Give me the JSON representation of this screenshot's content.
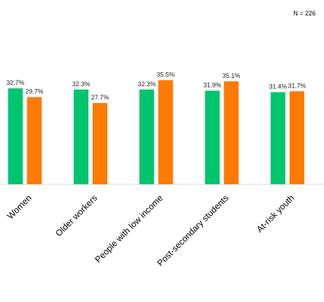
{
  "note": "N = 226",
  "chart_data": {
    "type": "bar",
    "categories": [
      "Women",
      "Older workers",
      "People with low income",
      "Post-secondary students",
      "At-risk youth"
    ],
    "series": [
      {
        "values": [
          32.7,
          32.3,
          32.3,
          31.9,
          31.4
        ],
        "labels": [
          "32.7%",
          "32.3%",
          "32.3%",
          "31.9%",
          "31.4%"
        ],
        "color": "#00c46e"
      },
      {
        "values": [
          29.7,
          27.7,
          35.5,
          35.1,
          31.7
        ],
        "labels": [
          "29.7%",
          "27.7%",
          "35.5%",
          "35.1%",
          "31.7%"
        ],
        "color": "#ff7a00"
      }
    ],
    "ylim": [
      0,
      40
    ],
    "grid": false,
    "legend": "none",
    "title": "",
    "xlabel": "",
    "ylabel": ""
  }
}
